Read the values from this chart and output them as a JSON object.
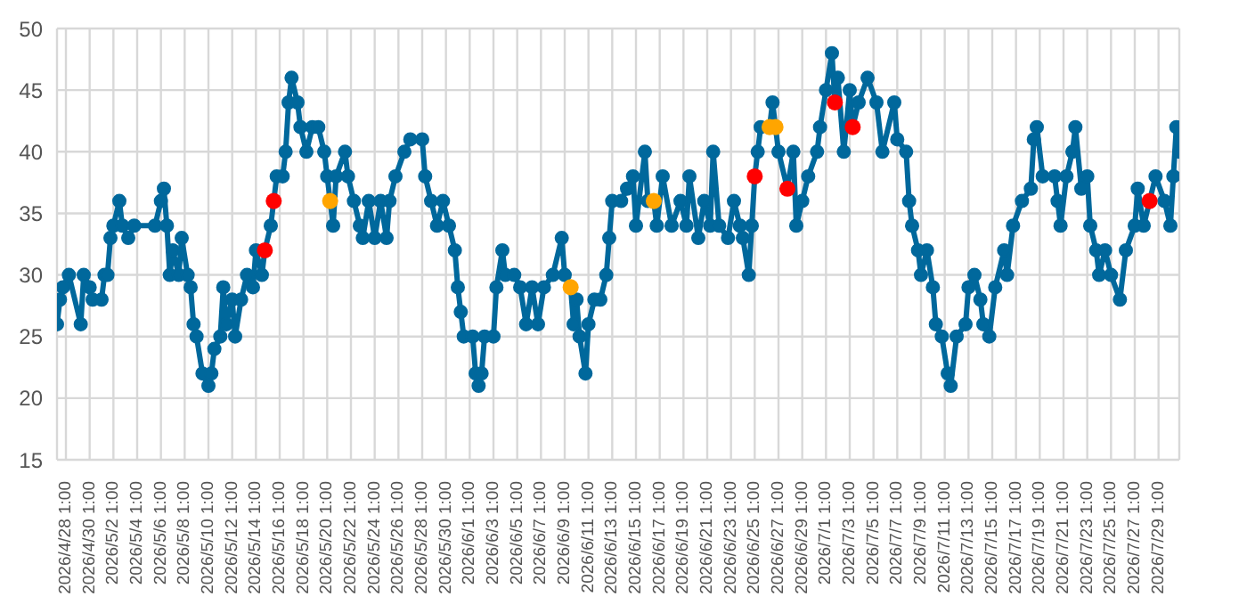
{
  "chart_data": {
    "type": "line",
    "marker": "circle",
    "line_style": "solid",
    "grid": true,
    "legend": false,
    "xlim": [
      "2026-04-27T07:00",
      "2026-07-30T19:00"
    ],
    "ylim": [
      15,
      50
    ],
    "yticks": [
      15,
      20,
      25,
      30,
      35,
      40,
      45,
      50
    ],
    "xticks": [
      {
        "value": "2026-04-28T01:00",
        "label": "2026/4/28 1:00"
      },
      {
        "value": "2026-04-30T01:00",
        "label": "2026/4/30 1:00"
      },
      {
        "value": "2026-05-02T01:00",
        "label": "2026/5/2 1:00"
      },
      {
        "value": "2026-05-04T01:00",
        "label": "2026/5/4 1:00"
      },
      {
        "value": "2026-05-06T01:00",
        "label": "2026/5/6 1:00"
      },
      {
        "value": "2026-05-08T01:00",
        "label": "2026/5/8 1:00"
      },
      {
        "value": "2026-05-10T01:00",
        "label": "2026/5/10 1:00"
      },
      {
        "value": "2026-05-12T01:00",
        "label": "2026/5/12 1:00"
      },
      {
        "value": "2026-05-14T01:00",
        "label": "2026/5/14 1:00"
      },
      {
        "value": "2026-05-16T01:00",
        "label": "2026/5/16 1:00"
      },
      {
        "value": "2026-05-18T01:00",
        "label": "2026/5/18 1:00"
      },
      {
        "value": "2026-05-20T01:00",
        "label": "2026/5/20 1:00"
      },
      {
        "value": "2026-05-22T01:00",
        "label": "2026/5/22 1:00"
      },
      {
        "value": "2026-05-24T01:00",
        "label": "2026/5/24 1:00"
      },
      {
        "value": "2026-05-26T01:00",
        "label": "2026/5/26 1:00"
      },
      {
        "value": "2026-05-28T01:00",
        "label": "2026/5/28 1:00"
      },
      {
        "value": "2026-05-30T01:00",
        "label": "2026/5/30 1:00"
      },
      {
        "value": "2026-06-01T01:00",
        "label": "2026/6/1 1:00"
      },
      {
        "value": "2026-06-03T01:00",
        "label": "2026/6/3 1:00"
      },
      {
        "value": "2026-06-05T01:00",
        "label": "2026/6/5 1:00"
      },
      {
        "value": "2026-06-07T01:00",
        "label": "2026/6/7 1:00"
      },
      {
        "value": "2026-06-09T01:00",
        "label": "2026/6/9 1:00"
      },
      {
        "value": "2026-06-11T01:00",
        "label": "2026/6/11 1:00"
      },
      {
        "value": "2026-06-13T01:00",
        "label": "2026/6/13 1:00"
      },
      {
        "value": "2026-06-15T01:00",
        "label": "2026/6/15 1:00"
      },
      {
        "value": "2026-06-17T01:00",
        "label": "2026/6/17 1:00"
      },
      {
        "value": "2026-06-19T01:00",
        "label": "2026/6/19 1:00"
      },
      {
        "value": "2026-06-21T01:00",
        "label": "2026/6/21 1:00"
      },
      {
        "value": "2026-06-23T01:00",
        "label": "2026/6/23 1:00"
      },
      {
        "value": "2026-06-25T01:00",
        "label": "2026/6/25 1:00"
      },
      {
        "value": "2026-06-27T01:00",
        "label": "2026/6/27 1:00"
      },
      {
        "value": "2026-06-29T01:00",
        "label": "2026/6/29 1:00"
      },
      {
        "value": "2026-07-01T01:00",
        "label": "2026/7/1 1:00"
      },
      {
        "value": "2026-07-03T01:00",
        "label": "2026/7/3 1:00"
      },
      {
        "value": "2026-07-05T01:00",
        "label": "2026/7/5 1:00"
      },
      {
        "value": "2026-07-07T01:00",
        "label": "2026/7/7 1:00"
      },
      {
        "value": "2026-07-09T01:00",
        "label": "2026/7/9 1:00"
      },
      {
        "value": "2026-07-11T01:00",
        "label": "2026/7/11 1:00"
      },
      {
        "value": "2026-07-13T01:00",
        "label": "2026/7/13 1:00"
      },
      {
        "value": "2026-07-15T01:00",
        "label": "2026/7/15 1:00"
      },
      {
        "value": "2026-07-17T01:00",
        "label": "2026/7/17 1:00"
      },
      {
        "value": "2026-07-19T01:00",
        "label": "2026/7/19 1:00"
      },
      {
        "value": "2026-07-21T01:00",
        "label": "2026/7/21 1:00"
      },
      {
        "value": "2026-07-23T01:00",
        "label": "2026/7/23 1:00"
      },
      {
        "value": "2026-07-25T01:00",
        "label": "2026/7/25 1:00"
      },
      {
        "value": "2026-07-27T01:00",
        "label": "2026/7/27 1:00"
      },
      {
        "value": "2026-07-29T01:00",
        "label": "2026/7/29 1:00"
      }
    ],
    "series": [
      {
        "color": "#00689c",
        "x": [
          "2026-04-27T07:00",
          "2026-04-27T13:00",
          "2026-04-27T19:00",
          "2026-04-28T07:00",
          "2026-04-29T07:00",
          "2026-04-29T13:00",
          "2026-04-30T01:00",
          "2026-04-30T07:00",
          "2026-05-01T01:00",
          "2026-05-01T07:00",
          "2026-05-01T13:00",
          "2026-05-01T19:00",
          "2026-05-02T01:00",
          "2026-05-02T13:00",
          "2026-05-02T19:00",
          "2026-05-03T07:00",
          "2026-05-03T19:00",
          "2026-05-05T13:00",
          "2026-05-06T01:00",
          "2026-05-06T07:00",
          "2026-05-06T13:00",
          "2026-05-06T19:00",
          "2026-05-07T01:00",
          "2026-05-07T13:00",
          "2026-05-07T19:00",
          "2026-05-08T07:00",
          "2026-05-08T13:00",
          "2026-05-08T19:00",
          "2026-05-09T01:00",
          "2026-05-09T13:00",
          "2026-05-10T01:00",
          "2026-05-10T07:00",
          "2026-05-10T13:00",
          "2026-05-11T01:00",
          "2026-05-11T07:00",
          "2026-05-11T13:00",
          "2026-05-12T01:00",
          "2026-05-12T07:00",
          "2026-05-12T19:00",
          "2026-05-13T07:00",
          "2026-05-13T19:00",
          "2026-05-14T01:00",
          "2026-05-14T13:00",
          "2026-05-14T19:00",
          "2026-05-15T07:00",
          "2026-05-15T13:00",
          "2026-05-15T19:00",
          "2026-05-16T07:00",
          "2026-05-16T13:00",
          "2026-05-16T19:00",
          "2026-05-17T01:00",
          "2026-05-17T13:00",
          "2026-05-17T19:00",
          "2026-05-18T07:00",
          "2026-05-18T19:00",
          "2026-05-19T07:00",
          "2026-05-19T19:00",
          "2026-05-20T01:00",
          "2026-05-20T07:00",
          "2026-05-20T13:00",
          "2026-05-20T19:00",
          "2026-05-21T13:00",
          "2026-05-21T19:00",
          "2026-05-22T07:00",
          "2026-05-22T19:00",
          "2026-05-23T01:00",
          "2026-05-23T13:00",
          "2026-05-24T01:00",
          "2026-05-24T13:00",
          "2026-05-25T01:00",
          "2026-05-25T07:00",
          "2026-05-25T19:00",
          "2026-05-26T13:00",
          "2026-05-27T01:00",
          "2026-05-28T01:00",
          "2026-05-28T07:00",
          "2026-05-28T19:00",
          "2026-05-29T07:00",
          "2026-05-29T19:00",
          "2026-05-30T07:00",
          "2026-05-30T19:00",
          "2026-05-31T01:00",
          "2026-05-31T07:00",
          "2026-05-31T13:00",
          "2026-06-01T07:00",
          "2026-06-01T13:00",
          "2026-06-01T19:00",
          "2026-06-02T01:00",
          "2026-06-02T07:00",
          "2026-06-03T01:00",
          "2026-06-03T07:00",
          "2026-06-03T19:00",
          "2026-06-04T01:00",
          "2026-06-04T19:00",
          "2026-06-05T07:00",
          "2026-06-05T19:00",
          "2026-06-06T07:00",
          "2026-06-06T19:00",
          "2026-06-07T07:00",
          "2026-06-08T01:00",
          "2026-06-08T19:00",
          "2026-06-09T01:00",
          "2026-06-09T13:00",
          "2026-06-09T19:00",
          "2026-06-10T01:00",
          "2026-06-10T07:00",
          "2026-06-10T19:00",
          "2026-06-11T01:00",
          "2026-06-11T13:00",
          "2026-06-12T01:00",
          "2026-06-12T13:00",
          "2026-06-12T19:00",
          "2026-06-13T01:00",
          "2026-06-13T19:00",
          "2026-06-14T07:00",
          "2026-06-14T19:00",
          "2026-06-15T01:00",
          "2026-06-15T19:00",
          "2026-06-16T01:00",
          "2026-06-16T13:00",
          "2026-06-16T19:00",
          "2026-06-17T07:00",
          "2026-06-18T01:00",
          "2026-06-18T19:00",
          "2026-06-19T07:00",
          "2026-06-19T13:00",
          "2026-06-20T07:00",
          "2026-06-20T19:00",
          "2026-06-21T07:00",
          "2026-06-21T13:00",
          "2026-06-22T01:00",
          "2026-06-22T19:00",
          "2026-06-23T07:00",
          "2026-06-23T19:00",
          "2026-06-24T01:00",
          "2026-06-24T13:00",
          "2026-06-24T19:00",
          "2026-06-25T01:00",
          "2026-06-25T07:00",
          "2026-06-25T13:00",
          "2026-06-26T07:00",
          "2026-06-26T13:00",
          "2026-06-26T19:00",
          "2026-06-27T01:00",
          "2026-06-27T19:00",
          "2026-06-28T07:00",
          "2026-06-28T13:00",
          "2026-06-29T01:00",
          "2026-06-29T13:00",
          "2026-06-30T07:00",
          "2026-06-30T13:00",
          "2026-07-01T01:00",
          "2026-07-01T13:00",
          "2026-07-01T19:00",
          "2026-07-02T01:00",
          "2026-07-02T13:00",
          "2026-07-03T01:00",
          "2026-07-03T07:00",
          "2026-07-03T19:00",
          "2026-07-04T13:00",
          "2026-07-05T07:00",
          "2026-07-05T19:00",
          "2026-07-06T19:00",
          "2026-07-07T01:00",
          "2026-07-07T19:00",
          "2026-07-08T01:00",
          "2026-07-08T07:00",
          "2026-07-08T19:00",
          "2026-07-09T01:00",
          "2026-07-09T13:00",
          "2026-07-10T01:00",
          "2026-07-10T07:00",
          "2026-07-10T19:00",
          "2026-07-11T07:00",
          "2026-07-11T13:00",
          "2026-07-12T01:00",
          "2026-07-12T19:00",
          "2026-07-13T01:00",
          "2026-07-13T13:00",
          "2026-07-14T01:00",
          "2026-07-14T07:00",
          "2026-07-14T19:00",
          "2026-07-15T07:00",
          "2026-07-16T01:00",
          "2026-07-16T07:00",
          "2026-07-16T19:00",
          "2026-07-17T13:00",
          "2026-07-18T07:00",
          "2026-07-18T13:00",
          "2026-07-18T19:00",
          "2026-07-19T07:00",
          "2026-07-20T07:00",
          "2026-07-20T13:00",
          "2026-07-20T19:00",
          "2026-07-21T07:00",
          "2026-07-21T19:00",
          "2026-07-22T01:00",
          "2026-07-22T13:00",
          "2026-07-23T01:00",
          "2026-07-23T07:00",
          "2026-07-23T19:00",
          "2026-07-24T01:00",
          "2026-07-24T13:00",
          "2026-07-25T01:00",
          "2026-07-25T19:00",
          "2026-07-26T07:00",
          "2026-07-27T01:00",
          "2026-07-27T07:00",
          "2026-07-27T19:00",
          "2026-07-28T07:00",
          "2026-07-28T19:00",
          "2026-07-29T13:00",
          "2026-07-30T01:00",
          "2026-07-30T07:00",
          "2026-07-30T13:00",
          "2026-07-30T19:00"
        ],
        "values": [
          26,
          28,
          29,
          30,
          26,
          30,
          29,
          28,
          28,
          30,
          30,
          33,
          34,
          36,
          34,
          33,
          34,
          34,
          36,
          37,
          34,
          30,
          32,
          30,
          33,
          30,
          29,
          26,
          25,
          22,
          21,
          22,
          24,
          25,
          29,
          26,
          28,
          25,
          28,
          30,
          29,
          32,
          30,
          32,
          34,
          36,
          38,
          38,
          40,
          44,
          46,
          44,
          42,
          40,
          42,
          42,
          40,
          38,
          36,
          34,
          38,
          40,
          38,
          36,
          34,
          33,
          36,
          33,
          36,
          33,
          36,
          38,
          40,
          41,
          41,
          38,
          36,
          34,
          36,
          34,
          32,
          29,
          27,
          25,
          25,
          22,
          21,
          22,
          25,
          25,
          29,
          32,
          30,
          30,
          29,
          26,
          29,
          26,
          29,
          30,
          33,
          30,
          29,
          26,
          28,
          25,
          22,
          26,
          28,
          28,
          30,
          33,
          36,
          36,
          37,
          38,
          34,
          40,
          36,
          36,
          34,
          38,
          34,
          36,
          34,
          38,
          33,
          36,
          34,
          40,
          34,
          33,
          36,
          34,
          33,
          30,
          34,
          38,
          40,
          42,
          42,
          44,
          42,
          40,
          37,
          40,
          34,
          36,
          38,
          40,
          42,
          45,
          48,
          44,
          46,
          40,
          45,
          42,
          44,
          46,
          44,
          40,
          44,
          41,
          40,
          36,
          34,
          32,
          30,
          32,
          29,
          26,
          25,
          22,
          21,
          25,
          26,
          29,
          30,
          28,
          26,
          25,
          29,
          32,
          30,
          34,
          36,
          37,
          41,
          42,
          38,
          38,
          36,
          34,
          38,
          40,
          42,
          37,
          38,
          34,
          32,
          30,
          32,
          30,
          28,
          32,
          34,
          37,
          34,
          36,
          38,
          36,
          34,
          38,
          42,
          40
        ]
      },
      {
        "type": "scatter",
        "color": "#ff0000",
        "x": [
          "2026-05-14T19:00",
          "2026-05-15T13:00",
          "2026-06-25T01:00",
          "2026-06-27T19:00",
          "2026-07-01T19:00",
          "2026-07-03T07:00",
          "2026-07-28T07:00"
        ],
        "values": [
          32,
          36,
          38,
          37,
          44,
          42,
          36
        ]
      },
      {
        "type": "scatter",
        "color": "#ffa500",
        "x": [
          "2026-05-20T07:00",
          "2026-06-09T13:00",
          "2026-06-16T13:00",
          "2026-06-26T07:00",
          "2026-06-26T19:00"
        ],
        "values": [
          36,
          29,
          36,
          42,
          42
        ]
      }
    ]
  }
}
